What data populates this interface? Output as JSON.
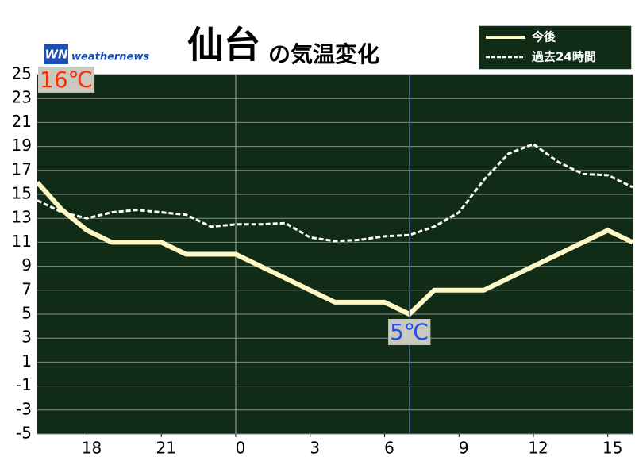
{
  "chart_data": {
    "type": "line",
    "title": "仙台",
    "subtitle": "の気温変化",
    "logo": {
      "mark": "WN",
      "text": "weathernews"
    },
    "x": [
      16,
      17,
      18,
      19,
      20,
      21,
      22,
      23,
      24,
      25,
      26,
      27,
      28,
      29,
      30,
      31,
      32,
      33,
      34,
      35,
      36,
      37,
      38,
      39,
      40
    ],
    "xlim": [
      16,
      40
    ],
    "xticks": [
      18,
      21,
      {
        "value": 24,
        "label": "0"
      },
      {
        "value": 27,
        "label": "3"
      },
      {
        "value": 30,
        "label": "6"
      },
      {
        "value": 33,
        "label": "9"
      },
      {
        "value": 36,
        "label": "12"
      },
      {
        "value": 39,
        "label": "15"
      }
    ],
    "ylim": [
      -5,
      25
    ],
    "yticks": [
      25,
      23,
      21,
      19,
      17,
      15,
      13,
      11,
      9,
      7,
      5,
      3,
      1,
      -1,
      -3,
      -5
    ],
    "grid": true,
    "series": [
      {
        "name": "今後",
        "color": "#fff8c4",
        "style": "solid",
        "values": [
          16,
          13.7,
          12,
          11,
          11,
          11,
          10,
          10,
          10,
          9,
          8,
          7,
          6,
          6,
          6,
          5,
          7,
          7,
          7,
          8,
          9,
          10,
          11,
          12,
          11
        ],
        "value_labels": [
          "16℃",
          null,
          null,
          null,
          null,
          null,
          null,
          null,
          null,
          null,
          null,
          null,
          null,
          null,
          null,
          "5℃",
          null,
          null,
          null,
          null,
          null,
          null,
          null,
          null,
          null
        ]
      },
      {
        "name": "過去24時間",
        "color": "#ffffff",
        "style": "dashed",
        "values": [
          14.5,
          13.5,
          13,
          13.5,
          13.7,
          13.5,
          13.3,
          12.3,
          12.5,
          12.5,
          12.6,
          11.4,
          11.1,
          11.2,
          11.5,
          11.6,
          12.3,
          13.5,
          16.2,
          18.4,
          19.2,
          17.7,
          16.7,
          16.6,
          15.6
        ]
      }
    ]
  }
}
